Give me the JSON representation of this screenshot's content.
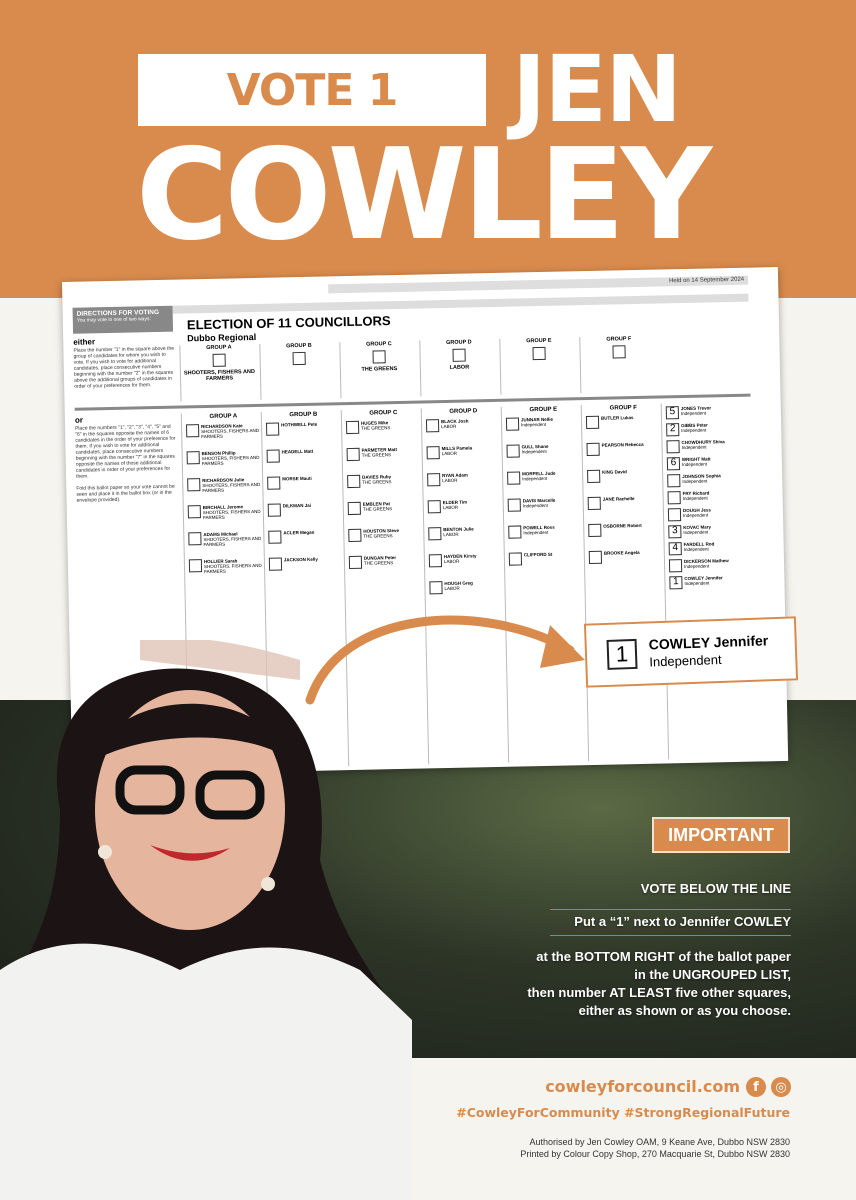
{
  "header": {
    "vote_label": "VOTE 1",
    "first_name": "JEN",
    "last_name": "COWLEY",
    "brand_color": "#d98b4d"
  },
  "ballot": {
    "held": "Held on 14 September 2024",
    "directions_title": "DIRECTIONS FOR VOTING",
    "directions_sub": "You may vote in one of two ways:",
    "title": "ELECTION OF 11 COUNCILLORS",
    "subtitle": "Dubbo Regional",
    "either_label": "either",
    "either_text": "Place the number \"1\" in the square above the group of candidates for whom you wish to vote. If you wish to vote for additional candidates, place consecutive numbers beginning with the number \"2\" in the squares above the additional groups of candidates in order of your preferences for them.",
    "or_label": "or",
    "or_text": "Place the numbers \"1\", \"2\", \"3\", \"4\", \"5\" and \"6\" in the squares opposite the names of 6 candidates in the order of your preference for them. If you wish to vote for additional candidates, place consecutive numbers beginning with the number \"7\" in the squares opposite the names of those additional candidates in order of your preferences for them.",
    "fold_text": "Fold this ballot paper so your vote cannot be seen and place it in the ballot box (or in the envelope provided).",
    "above_groups": [
      {
        "name": "GROUP A",
        "party": "SHOOTERS, FISHERS AND FARMERS"
      },
      {
        "name": "GROUP B",
        "party": ""
      },
      {
        "name": "GROUP C",
        "party": "THE GREENS"
      },
      {
        "name": "GROUP D",
        "party": "LABOR"
      },
      {
        "name": "GROUP E",
        "party": ""
      },
      {
        "name": "GROUP F",
        "party": ""
      }
    ],
    "columns": [
      {
        "name": "GROUP A",
        "candidates": [
          {
            "n": "RICHARDSON Kate",
            "p": "SHOOTERS, FISHERS AND FARMERS"
          },
          {
            "n": "BENSON Phillip",
            "p": "SHOOTERS, FISHERS AND FARMERS"
          },
          {
            "n": "RICHARDSON Julie",
            "p": "SHOOTERS, FISHERS AND FARMERS"
          },
          {
            "n": "BIRCHALL Jerome",
            "p": "SHOOTERS, FISHERS AND FARMERS"
          },
          {
            "n": "ADAMS Michael",
            "p": "SHOOTERS, FISHERS AND FARMERS"
          },
          {
            "n": "HOLLIER Sarah",
            "p": "SHOOTERS, FISHERS AND FARMERS"
          }
        ]
      },
      {
        "name": "GROUP B",
        "candidates": [
          {
            "n": "HOTHWELL Pete",
            "p": ""
          },
          {
            "n": "HEADELL Matt",
            "p": ""
          },
          {
            "n": "MORSE Mauti",
            "p": ""
          },
          {
            "n": "DILKMAN Jai",
            "p": ""
          },
          {
            "n": "ACLER Megan",
            "p": ""
          },
          {
            "n": "JACKSON Kelly",
            "p": ""
          }
        ]
      },
      {
        "name": "GROUP C",
        "candidates": [
          {
            "n": "HUGES Mike",
            "p": "THE GREENS"
          },
          {
            "n": "PARMETER Matt",
            "p": "THE GREENS"
          },
          {
            "n": "DAVIES Ruby",
            "p": "THE GREENS"
          },
          {
            "n": "EMBLEN Pat",
            "p": "THE GREENS"
          },
          {
            "n": "HOUSTON Steve",
            "p": "THE GREENS"
          },
          {
            "n": "DUNGAN Peter",
            "p": "THE GREENS"
          }
        ]
      },
      {
        "name": "GROUP D",
        "candidates": [
          {
            "n": "BLACK Josh",
            "p": "LABOR"
          },
          {
            "n": "MILLS Pamela",
            "p": "LABOR"
          },
          {
            "n": "RYAN Adam",
            "p": "LABOR"
          },
          {
            "n": "ELDER Tim",
            "p": "LABOR"
          },
          {
            "n": "BENTON Julie",
            "p": "LABOR"
          },
          {
            "n": "HAYDEN Kirsty",
            "p": "LABOR"
          },
          {
            "n": "HOUGH Greg",
            "p": "LABOR"
          }
        ]
      },
      {
        "name": "GROUP E",
        "candidates": [
          {
            "n": "JUNNAR Nellie",
            "p": "Independent"
          },
          {
            "n": "GULL Shane",
            "p": "Independent"
          },
          {
            "n": "MORFELL Jude",
            "p": "Independent"
          },
          {
            "n": "DAVIS Marcelle",
            "p": "Independent"
          },
          {
            "n": "POWELL Ross",
            "p": "Independent"
          },
          {
            "n": "CLIFFORD St",
            "p": ""
          }
        ]
      },
      {
        "name": "GROUP F",
        "candidates": [
          {
            "n": "BUTLER Lukas",
            "p": ""
          },
          {
            "n": "PEARSON Rebecca",
            "p": ""
          },
          {
            "n": "KING David",
            "p": ""
          },
          {
            "n": "JANE Rachelle",
            "p": ""
          },
          {
            "n": "OSBORNE Robert",
            "p": ""
          },
          {
            "n": "BROOKE Angela",
            "p": ""
          }
        ]
      },
      {
        "name": "",
        "candidates": [
          {
            "n": "JONES Trevor",
            "p": "Independent",
            "v": "5"
          },
          {
            "n": "GIBBS Peter",
            "p": "Independent",
            "v": "2"
          },
          {
            "n": "CHOWDHURY Shiva",
            "p": "Independent"
          },
          {
            "n": "WRIGHT Matt",
            "p": "Independent",
            "v": "6"
          },
          {
            "n": "JOHNSON Sophia",
            "p": "Independent"
          },
          {
            "n": "FRY Richard",
            "p": "Independent"
          },
          {
            "n": "DOUGH Jess",
            "p": "Independent"
          },
          {
            "n": "KOVAC Mary",
            "p": "Independent",
            "v": "3"
          },
          {
            "n": "FARDELL Rod",
            "p": "Independent",
            "v": "4"
          },
          {
            "n": "DICKERSON Mathew",
            "p": "Independent"
          },
          {
            "n": "COWLEY Jennifer",
            "p": "Independent",
            "v": "1"
          }
        ]
      }
    ]
  },
  "callout": {
    "number": "1",
    "name": "COWLEY Jennifer",
    "party": "Independent"
  },
  "instructions": {
    "badge": "IMPORTANT",
    "line1": "VOTE BELOW THE LINE",
    "line2": "Put a “1” next to Jennifer COWLEY",
    "line3": "at the BOTTOM RIGHT of the ballot paper",
    "line4": "in the UNGROUPED LIST,",
    "line5": "then number AT LEAST five other squares,",
    "line6": "either as shown or as you choose."
  },
  "footer": {
    "website": "cowleyforcouncil.com",
    "facebook_icon": "facebook-icon",
    "instagram_icon": "instagram-icon",
    "hashtags": "#CowleyForCommunity #StrongRegionalFuture",
    "authorised": "Authorised by Jen Cowley OAM, 9 Keane Ave, Dubbo NSW 2830",
    "printed": "Printed by Colour Copy Shop, 270 Macquarie St, Dubbo NSW 2830"
  }
}
